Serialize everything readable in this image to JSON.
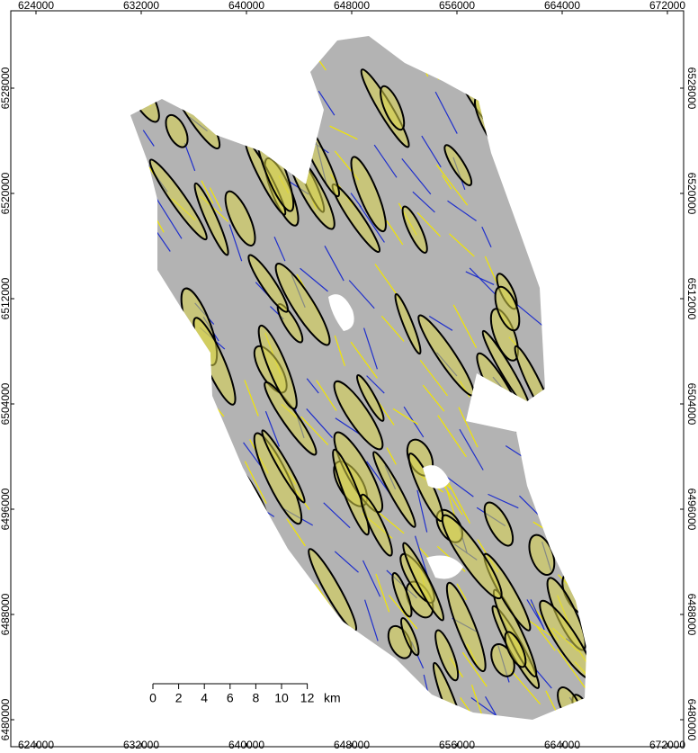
{
  "map": {
    "x_ticks": [
      624000,
      632000,
      640000,
      648000,
      656000,
      664000,
      672000
    ],
    "y_ticks": [
      6528000,
      6520000,
      6512000,
      6504000,
      6496000,
      6488000,
      6480000
    ],
    "scale_bar": {
      "labels": [
        "0",
        "2",
        "4",
        "6",
        "8",
        "10",
        "12"
      ],
      "unit": "km"
    }
  }
}
